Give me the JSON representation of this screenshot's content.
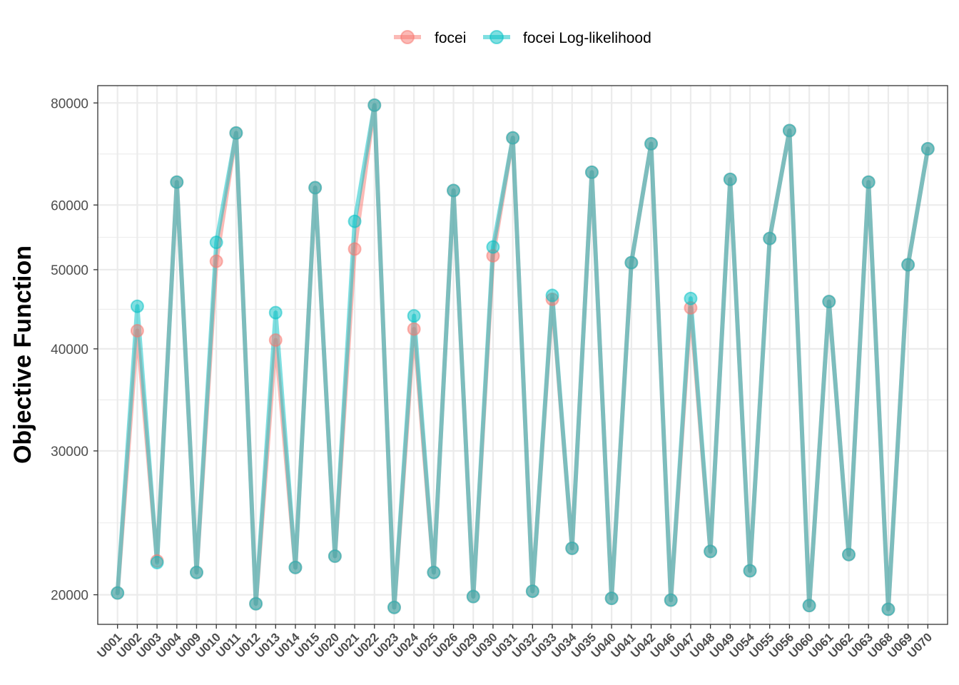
{
  "chart_data": {
    "type": "line",
    "ylabel": "Objective Function",
    "xlabel": "",
    "yscale": "log",
    "ylim": [
      18400,
      84000
    ],
    "yticks": [
      20000,
      30000,
      40000,
      50000,
      60000,
      80000
    ],
    "ytick_labels": [
      "20000",
      "30000",
      "40000",
      "50000",
      "60000",
      "80000"
    ],
    "grid": true,
    "legend_position": "top",
    "categories": [
      "U001",
      "U002",
      "U003",
      "U004",
      "U009",
      "U010",
      "U011",
      "U012",
      "U013",
      "U014",
      "U015",
      "U020",
      "U021",
      "U022",
      "U023",
      "U024",
      "U025",
      "U026",
      "U029",
      "U030",
      "U031",
      "U032",
      "U033",
      "U034",
      "U035",
      "U040",
      "U041",
      "U042",
      "U046",
      "U047",
      "U048",
      "U049",
      "U054",
      "U055",
      "U056",
      "U060",
      "U061",
      "U062",
      "U063",
      "U068",
      "U069",
      "U070"
    ],
    "series": [
      {
        "name": "focei",
        "color": "#F8766D",
        "values": [
          20100,
          42100,
          22000,
          64000,
          21300,
          51200,
          73500,
          19500,
          41000,
          21600,
          63000,
          22300,
          53000,
          79500,
          19300,
          42300,
          21300,
          62500,
          19900,
          52000,
          72500,
          20200,
          46000,
          22800,
          65800,
          19800,
          51000,
          71300,
          19700,
          44900,
          22600,
          64500,
          21400,
          54600,
          74000,
          19400,
          45700,
          22400,
          64000,
          19200,
          50700,
          70300
        ]
      },
      {
        "name": "focei Log-likelihood",
        "color": "#00BFC4",
        "values": [
          20100,
          45100,
          21900,
          64000,
          21300,
          54000,
          73500,
          19500,
          44300,
          21600,
          63000,
          22300,
          57300,
          79500,
          19300,
          43900,
          21300,
          62500,
          19900,
          53300,
          72500,
          20200,
          46500,
          22800,
          65800,
          19800,
          51000,
          71300,
          19700,
          46100,
          22600,
          64500,
          21400,
          54600,
          74000,
          19400,
          45700,
          22400,
          64000,
          19200,
          50700,
          70300
        ]
      }
    ]
  }
}
